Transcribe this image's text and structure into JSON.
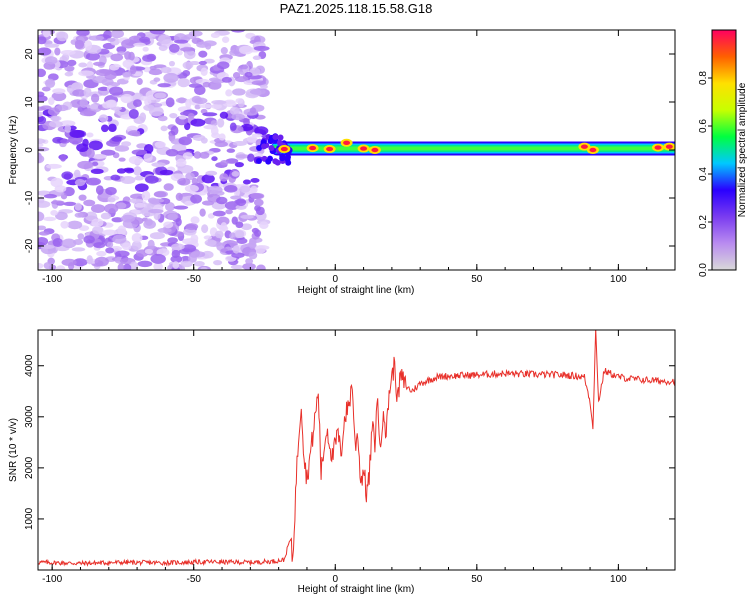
{
  "page_title": "PAZ1.2025.118.15.58.G18",
  "colors": {
    "snr_line": "#e8302a",
    "axis": "#000000",
    "colorbar_stops": [
      "#d9d9d9",
      "#b98cf0",
      "#7a3cf0",
      "#2a00ff",
      "#00c8ff",
      "#00ff40",
      "#c8ff00",
      "#ffe000",
      "#ff6000",
      "#ff0060"
    ]
  },
  "chart_data": [
    {
      "type": "heatmap",
      "title": "PAZ1.2025.118.15.58.G18",
      "xlabel": "Height of straight line (km)",
      "ylabel": "Frequency (Hz)",
      "xlim": [
        -105,
        120
      ],
      "ylim": [
        -25,
        25
      ],
      "xticks": [
        -100,
        -50,
        0,
        50,
        100
      ],
      "yticks": [
        -20,
        -10,
        0,
        10,
        20
      ],
      "colorbar": {
        "label": "Normalized spectral amplitude",
        "range": [
          0,
          1
        ],
        "ticks": [
          "0.0",
          "0.2",
          "0.4",
          "0.6",
          "0.8"
        ]
      },
      "noise_region_x": [
        -105,
        -25
      ],
      "signal_band": {
        "x_start": -25,
        "center_frequency": 0.3,
        "peaks": [
          {
            "x": -18,
            "f": 0.2
          },
          {
            "x": -8,
            "f": 0.4
          },
          {
            "x": -2,
            "f": 0.2
          },
          {
            "x": 4,
            "f": 1.5
          },
          {
            "x": 10,
            "f": 0.3
          },
          {
            "x": 14,
            "f": 0.0
          },
          {
            "x": 88,
            "f": 0.7
          },
          {
            "x": 91,
            "f": 0.0
          },
          {
            "x": 114,
            "f": 0.5
          },
          {
            "x": 118,
            "f": 0.7
          }
        ]
      }
    },
    {
      "type": "line",
      "xlabel": "Height of straight line (km)",
      "ylabel": "SNR (10 * v/v)",
      "xlim": [
        -105,
        120
      ],
      "ylim": [
        0,
        4700
      ],
      "xticks": [
        -100,
        -50,
        0,
        50,
        100
      ],
      "yticks": [
        1000,
        2000,
        3000,
        4000
      ],
      "series": [
        {
          "points": [
            [
              -105,
              150
            ],
            [
              -90,
              130
            ],
            [
              -75,
              150
            ],
            [
              -60,
              140
            ],
            [
              -45,
              160
            ],
            [
              -30,
              150
            ],
            [
              -22,
              170
            ],
            [
              -18,
              200
            ],
            [
              -16,
              600
            ],
            [
              -15,
              200
            ],
            [
              -14,
              1500
            ],
            [
              -13,
              2600
            ],
            [
              -12,
              3300
            ],
            [
              -11,
              2200
            ],
            [
              -10,
              1800
            ],
            [
              -8,
              2600
            ],
            [
              -6,
              3500
            ],
            [
              -5,
              1900
            ],
            [
              -3,
              2800
            ],
            [
              -1,
              2200
            ],
            [
              1,
              2700
            ],
            [
              2,
              2200
            ],
            [
              3,
              2900
            ],
            [
              5,
              3300
            ],
            [
              6,
              3650
            ],
            [
              7,
              2400
            ],
            [
              8,
              2700
            ],
            [
              9,
              1700
            ],
            [
              10,
              2000
            ],
            [
              11,
              1500
            ],
            [
              12,
              1800
            ],
            [
              13,
              2800
            ],
            [
              14,
              2500
            ],
            [
              15,
              3400
            ],
            [
              16,
              2200
            ],
            [
              17,
              3300
            ],
            [
              18,
              2600
            ],
            [
              19,
              3500
            ],
            [
              21,
              4050
            ],
            [
              22,
              3300
            ],
            [
              23,
              3800
            ],
            [
              25,
              3600
            ],
            [
              27,
              3500
            ],
            [
              30,
              3650
            ],
            [
              33,
              3720
            ],
            [
              36,
              3780
            ],
            [
              40,
              3800
            ],
            [
              50,
              3820
            ],
            [
              60,
              3850
            ],
            [
              70,
              3830
            ],
            [
              80,
              3820
            ],
            [
              85,
              3800
            ],
            [
              88,
              3780
            ],
            [
              90,
              3300
            ],
            [
              91,
              2800
            ],
            [
              92,
              4700
            ],
            [
              93,
              3300
            ],
            [
              95,
              3900
            ],
            [
              100,
              3780
            ],
            [
              105,
              3740
            ],
            [
              110,
              3720
            ],
            [
              115,
              3700
            ],
            [
              120,
              3700
            ]
          ]
        }
      ]
    }
  ]
}
